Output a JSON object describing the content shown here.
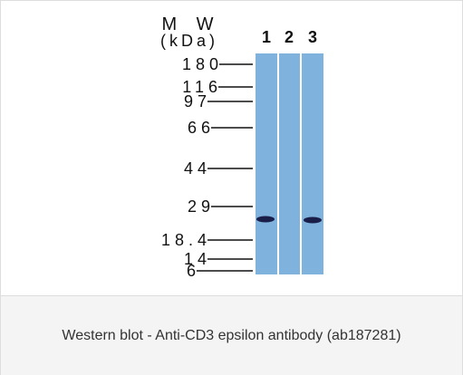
{
  "figure": {
    "mw_label": "M W",
    "unit_label": "(kDa)",
    "lanes": [
      "1",
      "2",
      "3"
    ],
    "markers": [
      "180",
      "116",
      "97",
      "66",
      "44",
      "29",
      "18.4",
      "14",
      "6"
    ]
  },
  "caption": "Western blot - Anti-CD3 epsilon antibody (ab187281)"
}
